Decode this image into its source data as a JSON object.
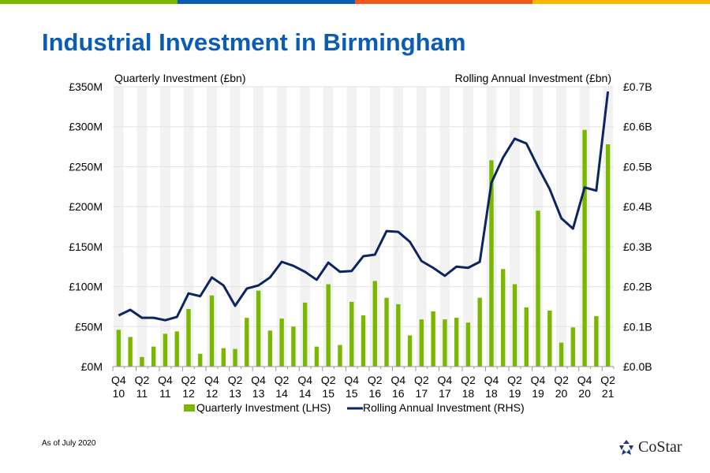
{
  "header": {
    "title": "Industrial Investment in Birmingham",
    "accent_colors": [
      "#7ab800",
      "#0b5cb5",
      "#f0581c",
      "#fbb800"
    ]
  },
  "footer": {
    "note": "As of July 2020",
    "logo": "CoStar"
  },
  "chart_data": {
    "type": "bar+line",
    "title": "Industrial Investment in Birmingham",
    "left_axis_title": "Quarterly Investment (£bn)",
    "right_axis_title": "Rolling Annual Investment (£bn)",
    "left_ylim": [
      0,
      350
    ],
    "left_ticks": [
      "£0M",
      "£50M",
      "£100M",
      "£150M",
      "£200M",
      "£250M",
      "£300M",
      "£350M"
    ],
    "right_ylim": [
      0,
      0.7
    ],
    "right_ticks": [
      "£0.0B",
      "£0.1B",
      "£0.2B",
      "£0.3B",
      "£0.4B",
      "£0.5B",
      "£0.6B",
      "£0.7B"
    ],
    "grid": true,
    "legend_position": "bottom",
    "x_tick_labels": [
      [
        "Q4",
        "10"
      ],
      [
        "Q2",
        "11"
      ],
      [
        "Q4",
        "11"
      ],
      [
        "Q2",
        "12"
      ],
      [
        "Q4",
        "12"
      ],
      [
        "Q2",
        "13"
      ],
      [
        "Q4",
        "13"
      ],
      [
        "Q2",
        "14"
      ],
      [
        "Q4",
        "14"
      ],
      [
        "Q2",
        "15"
      ],
      [
        "Q4",
        "15"
      ],
      [
        "Q2",
        "16"
      ],
      [
        "Q4",
        "16"
      ],
      [
        "Q2",
        "17"
      ],
      [
        "Q4",
        "17"
      ],
      [
        "Q2",
        "18"
      ],
      [
        "Q4",
        "18"
      ],
      [
        "Q2",
        "19"
      ],
      [
        "Q4",
        "19"
      ],
      [
        "Q2",
        "20"
      ],
      [
        "Q4",
        "20"
      ],
      [
        "Q2",
        "21"
      ]
    ],
    "categories": [
      "Q4 10",
      "Q1 11",
      "Q2 11",
      "Q3 11",
      "Q4 11",
      "Q1 12",
      "Q2 12",
      "Q3 12",
      "Q4 12",
      "Q1 13",
      "Q2 13",
      "Q3 13",
      "Q4 13",
      "Q1 14",
      "Q2 14",
      "Q3 14",
      "Q4 14",
      "Q1 15",
      "Q2 15",
      "Q3 15",
      "Q4 15",
      "Q1 16",
      "Q2 16",
      "Q3 16",
      "Q4 16",
      "Q1 17",
      "Q2 17",
      "Q3 17",
      "Q4 17",
      "Q1 18",
      "Q2 18",
      "Q3 18",
      "Q4 18",
      "Q1 19",
      "Q2 19",
      "Q3 19",
      "Q4 19",
      "Q1 20",
      "Q2 20",
      "Q3 20",
      "Q4 20",
      "Q1 21",
      "Q2 21"
    ],
    "series": [
      {
        "name": "Quarterly Investment (LHS)",
        "type": "bar",
        "axis": "left",
        "unit": "£M",
        "color": "#7ab800",
        "values": [
          46,
          37,
          12,
          25,
          41,
          44,
          72,
          16,
          89,
          23,
          22,
          61,
          95,
          45,
          60,
          50,
          80,
          25,
          103,
          27,
          81,
          64,
          107,
          86,
          78,
          39,
          59,
          69,
          59,
          61,
          55,
          86,
          258,
          122,
          103,
          74,
          195,
          70,
          30,
          49,
          296,
          63,
          278
        ]
      },
      {
        "name": "Rolling Annual Investment (RHS)",
        "type": "line",
        "axis": "right",
        "unit": "£B",
        "color": "#0c2461",
        "values": [
          0.128,
          0.142,
          0.122,
          0.122,
          0.116,
          0.124,
          0.183,
          0.176,
          0.223,
          0.203,
          0.152,
          0.195,
          0.203,
          0.223,
          0.262,
          0.252,
          0.237,
          0.217,
          0.26,
          0.237,
          0.239,
          0.276,
          0.28,
          0.339,
          0.337,
          0.312,
          0.264,
          0.247,
          0.227,
          0.25,
          0.247,
          0.262,
          0.46,
          0.523,
          0.57,
          0.558,
          0.499,
          0.444,
          0.371,
          0.345,
          0.448,
          0.44,
          0.688
        ]
      }
    ]
  }
}
